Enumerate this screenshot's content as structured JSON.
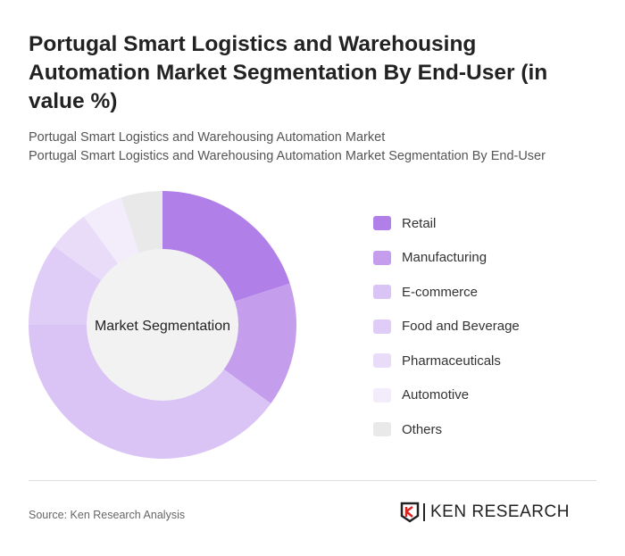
{
  "title": "Portugal Smart Logistics and Warehousing Automation Market Segmentation By End-User (in value %)",
  "subtitle1": "Portugal Smart Logistics and Warehousing Automation Market",
  "subtitle2": "Portugal Smart Logistics and Warehousing Automation Market Segmentation By End-User",
  "source": "Source: Ken Research Analysis",
  "logo_text": "KEN RESEARCH",
  "chart_data": {
    "type": "pie",
    "variant": "donut",
    "center_label": "Market Segmentation",
    "unit": "%",
    "legend_position": "right",
    "categories": [
      "Retail",
      "Manufacturing",
      "E-commerce",
      "Food and Beverage",
      "Pharmaceuticals",
      "Automotive",
      "Others"
    ],
    "values": [
      20,
      15,
      40,
      10,
      5,
      5,
      5
    ],
    "colors": [
      "#b07fe8",
      "#c49eec",
      "#dac4f5",
      "#e0cdf7",
      "#e9dcf9",
      "#f2ecfb",
      "#e9e9e9"
    ]
  }
}
